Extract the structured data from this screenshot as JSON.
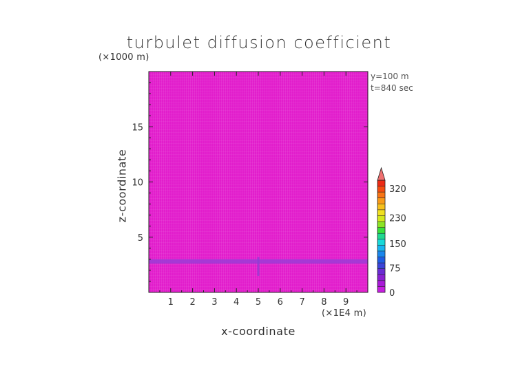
{
  "chart_data": {
    "type": "heatmap",
    "title": "turbulet diffusion coefficient",
    "xlabel": "x-coordinate",
    "ylabel": "z-coordinate",
    "x_scale_note": "(×1E4 m)",
    "z_scale_note": "(×1000 m)",
    "annotations": [
      "y=100 m",
      "t=840 sec"
    ],
    "xlim": [
      0,
      10
    ],
    "zlim": [
      0,
      20
    ],
    "x_ticks": [
      "1",
      "2",
      "3",
      "4",
      "5",
      "6",
      "7",
      "8",
      "9"
    ],
    "z_ticks": [
      "5",
      "10",
      "15"
    ],
    "field": {
      "background_value_range": [
        0,
        10
      ],
      "background_color": "#e21dcc",
      "band": {
        "z_range": [
          2.6,
          3.0
        ],
        "value_range": [
          40,
          60
        ],
        "color": "#9b3cd6"
      },
      "plume": {
        "x": 5.0,
        "z_range": [
          1.5,
          3.2
        ],
        "color": "#8e3fd2"
      }
    },
    "colorbar": {
      "labels": [
        "0",
        "75",
        "150",
        "230",
        "320"
      ],
      "label_values": [
        0,
        75,
        150,
        230,
        320
      ],
      "max": 345,
      "colors": [
        "#c61ee0",
        "#a91ad8",
        "#8a20d2",
        "#6a2cd2",
        "#3b44d8",
        "#1f5ce3",
        "#1a86ec",
        "#18b4f0",
        "#18d8d8",
        "#20d890",
        "#38e03c",
        "#8ce424",
        "#d4e81c",
        "#f0e020",
        "#f6c01c",
        "#f89a18",
        "#f87414",
        "#f44c10",
        "#ec2a14"
      ],
      "extend_max_color": "#f07070"
    }
  }
}
